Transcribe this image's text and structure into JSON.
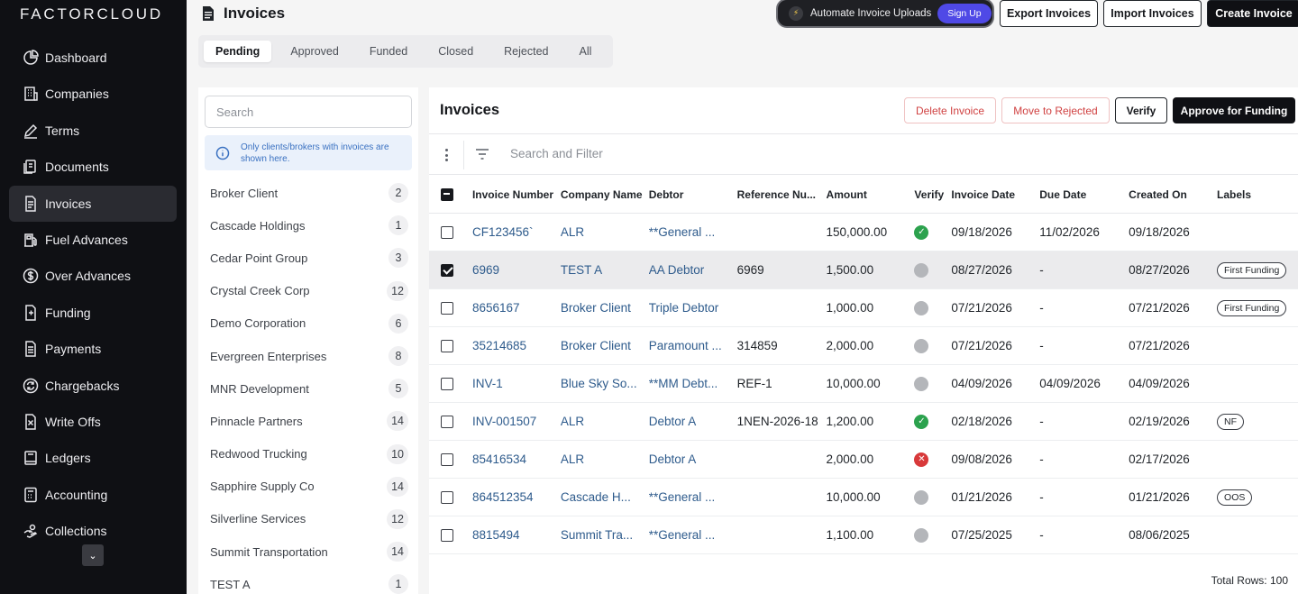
{
  "brand": "FACTORCLOUD",
  "sidebar": {
    "items": [
      {
        "label": "Dashboard",
        "icon": "chart-pie-icon"
      },
      {
        "label": "Companies",
        "icon": "building-icon"
      },
      {
        "label": "Terms",
        "icon": "pen-icon"
      },
      {
        "label": "Documents",
        "icon": "documents-icon"
      },
      {
        "label": "Invoices",
        "icon": "invoice-icon",
        "active": true
      },
      {
        "label": "Fuel Advances",
        "icon": "fuel-icon"
      },
      {
        "label": "Over Advances",
        "icon": "dollar-circle-icon"
      },
      {
        "label": "Funding",
        "icon": "funding-icon"
      },
      {
        "label": "Payments",
        "icon": "payments-icon"
      },
      {
        "label": "Chargebacks",
        "icon": "refresh-circle-icon"
      },
      {
        "label": "Write Offs",
        "icon": "write-off-icon"
      },
      {
        "label": "Ledgers",
        "icon": "ledger-icon"
      },
      {
        "label": "Accounting",
        "icon": "calculator-icon"
      },
      {
        "label": "Collections",
        "icon": "hand-coin-icon"
      }
    ]
  },
  "header": {
    "title": "Invoices",
    "promo_text": "Automate Invoice Uploads",
    "promo_button": "Sign Up",
    "export_label": "Export Invoices",
    "import_label": "Import Invoices",
    "create_label": "Create Invoice"
  },
  "tabs": [
    "Pending",
    "Approved",
    "Funded",
    "Closed",
    "Rejected",
    "All"
  ],
  "clients": {
    "search_placeholder": "Search",
    "info": "Only clients/brokers with invoices are shown here.",
    "list": [
      {
        "name": "Broker Client",
        "count": "2"
      },
      {
        "name": "Cascade Holdings",
        "count": "1"
      },
      {
        "name": "Cedar Point Group",
        "count": "3"
      },
      {
        "name": "Crystal Creek Corp",
        "count": "12"
      },
      {
        "name": "Demo Corporation",
        "count": "6"
      },
      {
        "name": "Evergreen Enterprises",
        "count": "8"
      },
      {
        "name": "MNR Development",
        "count": "5"
      },
      {
        "name": "Pinnacle Partners",
        "count": "14"
      },
      {
        "name": "Redwood Trucking",
        "count": "10"
      },
      {
        "name": "Sapphire Supply Co",
        "count": "14"
      },
      {
        "name": "Silverline Services",
        "count": "12"
      },
      {
        "name": "Summit Transportation",
        "count": "14"
      },
      {
        "name": "TEST A",
        "count": "1"
      }
    ]
  },
  "invoices": {
    "title": "Invoices",
    "delete_label": "Delete Invoice",
    "reject_label": "Move to Rejected",
    "verify_label": "Verify",
    "approve_label": "Approve for Funding",
    "search_placeholder": "Search and Filter",
    "columns": [
      "Invoice Number",
      "Company Name",
      "Debtor",
      "Reference Nu...",
      "Amount",
      "Verify",
      "Invoice Date",
      "Due Date",
      "Created On",
      "Labels"
    ],
    "rows": [
      {
        "num": "CF123456`",
        "company": "ALR",
        "debtor": "**General ...",
        "ref": "",
        "amount": "150,000.00",
        "verify": "green",
        "inv_date": "09/18/2026",
        "due": "11/02/2026",
        "created": "09/18/2026",
        "label": "",
        "checked": false
      },
      {
        "num": "6969",
        "company": "TEST A",
        "debtor": "AA Debtor",
        "ref": "6969",
        "amount": "1,500.00",
        "verify": "gray",
        "inv_date": "08/27/2026",
        "due": "-",
        "created": "08/27/2026",
        "label": "First Funding",
        "checked": true
      },
      {
        "num": "8656167",
        "company": "Broker Client",
        "debtor": "Triple Debtor",
        "ref": "",
        "amount": "1,000.00",
        "verify": "gray",
        "inv_date": "07/21/2026",
        "due": "-",
        "created": "07/21/2026",
        "label": "First Funding",
        "checked": false
      },
      {
        "num": "35214685",
        "company": "Broker Client",
        "debtor": "Paramount ...",
        "ref": "314859",
        "amount": "2,000.00",
        "verify": "gray",
        "inv_date": "07/21/2026",
        "due": "-",
        "created": "07/21/2026",
        "label": "",
        "checked": false
      },
      {
        "num": "INV-1",
        "company": "Blue Sky So...",
        "debtor": "**MM Debt...",
        "ref": "REF-1",
        "amount": "10,000.00",
        "verify": "gray",
        "inv_date": "04/09/2026",
        "due": "04/09/2026",
        "created": "04/09/2026",
        "label": "",
        "checked": false
      },
      {
        "num": "INV-001507",
        "company": "ALR",
        "debtor": "Debtor A",
        "ref": "1NEN-2026-18",
        "amount": "1,200.00",
        "verify": "green",
        "inv_date": "02/18/2026",
        "due": "-",
        "created": "02/19/2026",
        "label": "NF",
        "checked": false
      },
      {
        "num": "85416534",
        "company": "ALR",
        "debtor": "Debtor A",
        "ref": "",
        "amount": "2,000.00",
        "verify": "red",
        "inv_date": "09/08/2026",
        "due": "-",
        "created": "02/17/2026",
        "label": "",
        "checked": false
      },
      {
        "num": "864512354",
        "company": "Cascade H...",
        "debtor": "**General ...",
        "ref": "",
        "amount": "10,000.00",
        "verify": "gray",
        "inv_date": "01/21/2026",
        "due": "-",
        "created": "01/21/2026",
        "label": "OOS",
        "checked": false
      },
      {
        "num": "8815494",
        "company": "Summit Tra...",
        "debtor": "**General ...",
        "ref": "",
        "amount": "1,100.00",
        "verify": "gray",
        "inv_date": "07/25/2025",
        "due": "-",
        "created": "08/06/2025",
        "label": "",
        "checked": false
      }
    ],
    "total_rows": "Total Rows: 100"
  }
}
